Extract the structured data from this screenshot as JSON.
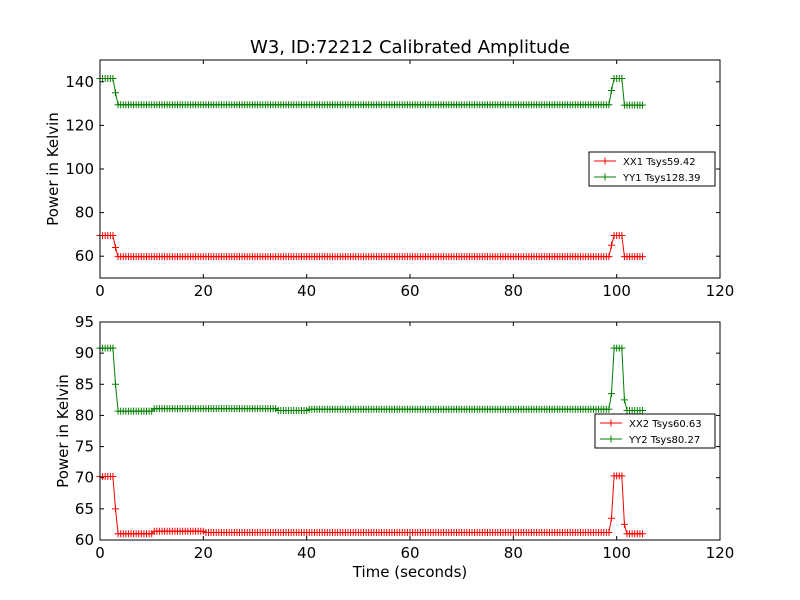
{
  "figure": {
    "title": "W3, ID:72212 Calibrated Amplitude",
    "xlabel": "Time (seconds)"
  },
  "chart_data": [
    {
      "type": "line",
      "title": "W3, ID:72212 Calibrated Amplitude",
      "xlabel": "",
      "ylabel": "Power in Kelvin",
      "xlim": [
        0,
        120
      ],
      "ylim": [
        50,
        150
      ],
      "xticks": [
        0,
        20,
        40,
        60,
        80,
        100,
        120
      ],
      "yticks": [
        60,
        80,
        100,
        120,
        140
      ],
      "grid": false,
      "legend": "center-right",
      "series": [
        {
          "name": "XX1 Tsys59.42",
          "color": "#ff0000",
          "marker": "+",
          "segments": [
            {
              "x_start": 0,
              "x_end": 2.5,
              "y": 69.5
            },
            {
              "x_start": 3,
              "x_end": 3,
              "y": 64
            },
            {
              "x_start": 3.5,
              "x_end": 98.5,
              "y": 59.8
            },
            {
              "x_start": 99,
              "x_end": 99,
              "y": 65
            },
            {
              "x_start": 99.5,
              "x_end": 101,
              "y": 69.5
            },
            {
              "x_start": 101.5,
              "x_end": 105,
              "y": 59.8
            }
          ]
        },
        {
          "name": "YY1 Tsys128.39",
          "color": "#007f00",
          "marker": "+",
          "segments": [
            {
              "x_start": 0,
              "x_end": 2.5,
              "y": 141.5
            },
            {
              "x_start": 3,
              "x_end": 3,
              "y": 135
            },
            {
              "x_start": 3.5,
              "x_end": 98.5,
              "y": 129.5
            },
            {
              "x_start": 99,
              "x_end": 99,
              "y": 136
            },
            {
              "x_start": 99.5,
              "x_end": 101,
              "y": 141.5
            },
            {
              "x_start": 101.5,
              "x_end": 105,
              "y": 129.3
            }
          ]
        }
      ]
    },
    {
      "type": "line",
      "title": "",
      "xlabel": "Time (seconds)",
      "ylabel": "Power in Kelvin",
      "xlim": [
        0,
        120
      ],
      "ylim": [
        60,
        95
      ],
      "xticks": [
        0,
        20,
        40,
        60,
        80,
        100,
        120
      ],
      "yticks": [
        60,
        65,
        70,
        75,
        80,
        85,
        90,
        95
      ],
      "grid": false,
      "legend": "center-right",
      "series": [
        {
          "name": "XX2 Tsys60.63",
          "color": "#ff0000",
          "marker": "+",
          "segments": [
            {
              "x_start": 0,
              "x_end": 2.5,
              "y": 70.2
            },
            {
              "x_start": 3,
              "x_end": 3,
              "y": 65
            },
            {
              "x_start": 3.5,
              "x_end": 10,
              "y": 61
            },
            {
              "x_start": 10.5,
              "x_end": 20,
              "y": 61.4
            },
            {
              "x_start": 20.5,
              "x_end": 98.5,
              "y": 61.2
            },
            {
              "x_start": 99,
              "x_end": 99,
              "y": 63.5
            },
            {
              "x_start": 99.5,
              "x_end": 101,
              "y": 70.3
            },
            {
              "x_start": 101.5,
              "x_end": 101.5,
              "y": 62.5
            },
            {
              "x_start": 102,
              "x_end": 105,
              "y": 61
            }
          ]
        },
        {
          "name": "YY2 Tsys80.27",
          "color": "#007f00",
          "marker": "+",
          "segments": [
            {
              "x_start": 0,
              "x_end": 2.5,
              "y": 90.8
            },
            {
              "x_start": 3,
              "x_end": 3,
              "y": 85
            },
            {
              "x_start": 3.5,
              "x_end": 10,
              "y": 80.7
            },
            {
              "x_start": 10.5,
              "x_end": 34,
              "y": 81.1
            },
            {
              "x_start": 34.5,
              "x_end": 40,
              "y": 80.8
            },
            {
              "x_start": 40.5,
              "x_end": 98.5,
              "y": 81
            },
            {
              "x_start": 99,
              "x_end": 99,
              "y": 83.5
            },
            {
              "x_start": 99.5,
              "x_end": 101,
              "y": 90.8
            },
            {
              "x_start": 101.5,
              "x_end": 101.5,
              "y": 82.5
            },
            {
              "x_start": 102,
              "x_end": 105,
              "y": 80.8
            }
          ]
        }
      ]
    }
  ]
}
